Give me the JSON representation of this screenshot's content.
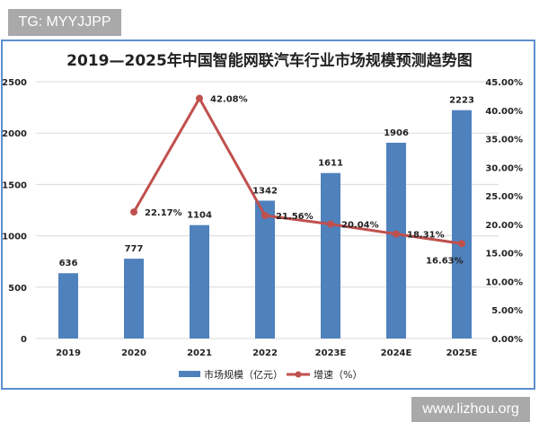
{
  "badges": {
    "top_left": "TG: MYYJJPP",
    "bottom_right": "www.lizhou.org"
  },
  "chart_data": {
    "type": "bar+line",
    "title": "2019—2025年中国智能网联汽车行业市场规模预测趋势图",
    "categories": [
      "2019",
      "2020",
      "2021",
      "2022",
      "2023E",
      "2024E",
      "2025E"
    ],
    "series": [
      {
        "name": "市场规模（亿元）",
        "type": "bar",
        "axis": "left",
        "color": "#4f81bd",
        "values": [
          636,
          777,
          1104,
          1342,
          1611,
          1906,
          2223
        ],
        "labels": [
          "636",
          "777",
          "1104",
          "1342",
          "1611",
          "1906",
          "2223"
        ]
      },
      {
        "name": "增速（%）",
        "type": "line",
        "axis": "right",
        "color": "#c0504d",
        "values": [
          null,
          22.17,
          42.08,
          21.56,
          20.04,
          18.31,
          16.63
        ],
        "labels": [
          "",
          "22.17%",
          "42.08%",
          "21.56%",
          "20.04%",
          "18.31%",
          "16.63%"
        ]
      }
    ],
    "left_axis": {
      "range": [
        0,
        2500
      ],
      "ticks": [
        "0",
        "500",
        "1000",
        "1500",
        "2000",
        "2500"
      ]
    },
    "right_axis": {
      "range": [
        0,
        45
      ],
      "ticks": [
        "0.00%",
        "5.00%",
        "10.00%",
        "15.00%",
        "20.00%",
        "25.00%",
        "30.00%",
        "35.00%",
        "40.00%",
        "45.00%"
      ]
    },
    "grid": true,
    "legend": "bottom-center"
  }
}
